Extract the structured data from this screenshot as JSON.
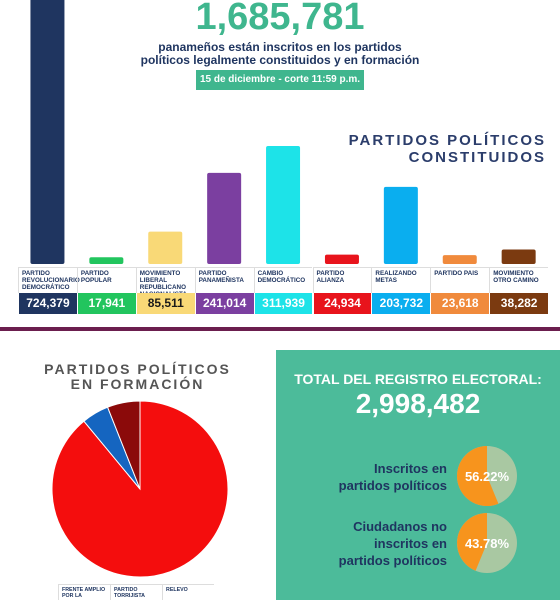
{
  "header": {
    "total": "1,685,781",
    "subtitle": "panameños están inscritos en los partidos políticos legalmente constituidos y en formación",
    "date": "15 de diciembre - corte 11:59 p.m."
  },
  "chart_data": [
    {
      "type": "bar",
      "title": "PARTIDOS POLÍTICOS CONSTITUIDOS",
      "categories": [
        "PARTIDO REVOLUCIONARIO DEMOCRÁTICO",
        "PARTIDO POPULAR",
        "MOVIMIENTO LIBERAL REPUBLICANO NACIONALISTA",
        "PARTIDO PANAMEÑISTA",
        "CAMBIO DEMOCRÁTICO",
        "PARTIDO ALIANZA",
        "REALIZANDO METAS",
        "PARTIDO PAIS",
        "MOVIMIENTO OTRO CAMINO"
      ],
      "values": [
        724379,
        17941,
        85511,
        241014,
        311939,
        24934,
        203732,
        23618,
        38282
      ],
      "value_labels": [
        "724,379",
        "17,941",
        "85,511",
        "241,014",
        "311,939",
        "24,934",
        "203,732",
        "23,618",
        "38,282"
      ],
      "colors": [
        "#1f3560",
        "#22c55e",
        "#f9d977",
        "#7b3fa0",
        "#1de3e8",
        "#e8141c",
        "#0aaeef",
        "#f08a3c",
        "#7b3a10"
      ]
    },
    {
      "type": "pie",
      "title": "PARTIDOS POLÍTICOS EN FORMACIÓN",
      "categories": [
        "FRENTE AMPLIO POR LA",
        "PARTIDO TORRIJISTA",
        "RELEVO"
      ],
      "values": [
        89,
        5,
        6
      ],
      "colors": [
        "#f40d0d",
        "#1565c0",
        "#8b0a0a"
      ]
    },
    {
      "type": "gauge",
      "title": "TOTAL DEL REGISTRO ELECTORAL:",
      "total": "2,998,482",
      "categories": [
        "Inscritos en partidos políticos",
        "Ciudadanos no inscritos en partidos políticos"
      ],
      "values": [
        56.22,
        43.78
      ],
      "value_labels": [
        "56.22%",
        "43.78%"
      ],
      "color": "#f7941d",
      "track_color": "#a9c8a2"
    }
  ]
}
